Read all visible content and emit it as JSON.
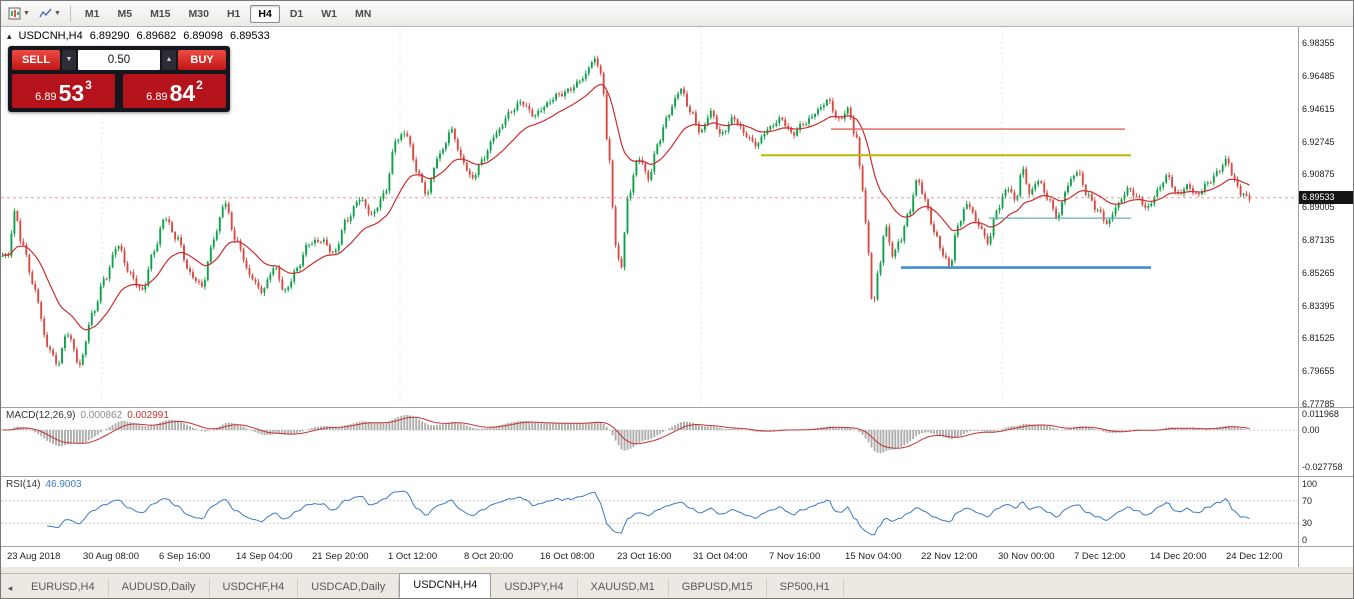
{
  "toolbar": {
    "timeframes": [
      "M1",
      "M5",
      "M15",
      "M30",
      "H1",
      "H4",
      "D1",
      "W1",
      "MN"
    ],
    "active_timeframe": "H4"
  },
  "chart_header": {
    "symbol": "USDCNH,H4",
    "open": "6.89290",
    "high": "6.89682",
    "low": "6.89098",
    "close": "6.89533",
    "collapse_icon": "▴"
  },
  "trade_panel": {
    "sell_label": "SELL",
    "buy_label": "BUY",
    "volume": "0.50",
    "sell_price": {
      "head": "6.89",
      "main": "53",
      "sup": "3"
    },
    "buy_price": {
      "head": "6.89",
      "main": "84",
      "sup": "2"
    }
  },
  "price_axis": {
    "ticks": [
      "6.98355",
      "6.96485",
      "6.94615",
      "6.92745",
      "6.90875",
      "6.89005",
      "6.87135",
      "6.85265",
      "6.83395",
      "6.81525",
      "6.79655",
      "6.77785"
    ],
    "current_price": "6.89533"
  },
  "time_axis": {
    "labels": [
      "23 Aug 2018",
      "30 Aug 08:00",
      "6 Sep 16:00",
      "14 Sep 04:00",
      "21 Sep 20:00",
      "1 Oct 12:00",
      "8 Oct 20:00",
      "16 Oct 08:00",
      "23 Oct 16:00",
      "31 Oct 04:00",
      "7 Nov 16:00",
      "15 Nov 04:00",
      "22 Nov 12:00",
      "30 Nov 00:00",
      "7 Dec 12:00",
      "14 Dec 20:00",
      "24 Dec 12:00"
    ]
  },
  "indicators": {
    "macd": {
      "name": "MACD(12,26,9)",
      "value_main": "0.000862",
      "value_signal": "0.002991",
      "ticks": [
        "0.011968",
        "0.00",
        "-0.027758"
      ]
    },
    "rsi": {
      "name": "RSI(14)",
      "value": "46.9003",
      "ticks": [
        "100",
        "70",
        "30",
        "0"
      ]
    }
  },
  "tabs": {
    "items": [
      "EURUSD,H4",
      "AUDUSD,Daily",
      "USDCHF,H4",
      "USDCAD,Daily",
      "USDCNH,H4",
      "USDJPY,H4",
      "XAUUSD,M1",
      "GBPUSD,M15",
      "SP500,H1"
    ],
    "active": "USDCNH,H4",
    "scroll_left_icon": "◂"
  },
  "chart_data": {
    "type": "candlestick",
    "title": "USDCNH,H4",
    "price_top": 6.98355,
    "price_bottom": 6.77785,
    "num_candles": 420,
    "ma_period": 21,
    "close_anchors": [
      [
        0.004,
        6.862
      ],
      [
        0.01,
        6.888
      ],
      [
        0.016,
        6.868
      ],
      [
        0.026,
        6.842
      ],
      [
        0.036,
        6.812
      ],
      [
        0.044,
        6.8
      ],
      [
        0.052,
        6.818
      ],
      [
        0.062,
        6.801
      ],
      [
        0.072,
        6.828
      ],
      [
        0.082,
        6.85
      ],
      [
        0.092,
        6.868
      ],
      [
        0.102,
        6.852
      ],
      [
        0.112,
        6.843
      ],
      [
        0.122,
        6.865
      ],
      [
        0.13,
        6.885
      ],
      [
        0.14,
        6.872
      ],
      [
        0.15,
        6.852
      ],
      [
        0.16,
        6.846
      ],
      [
        0.17,
        6.872
      ],
      [
        0.178,
        6.893
      ],
      [
        0.188,
        6.87
      ],
      [
        0.198,
        6.851
      ],
      [
        0.208,
        6.843
      ],
      [
        0.218,
        6.855
      ],
      [
        0.226,
        6.842
      ],
      [
        0.236,
        6.855
      ],
      [
        0.246,
        6.869
      ],
      [
        0.256,
        6.872
      ],
      [
        0.266,
        6.863
      ],
      [
        0.276,
        6.883
      ],
      [
        0.286,
        6.895
      ],
      [
        0.296,
        6.885
      ],
      [
        0.306,
        6.898
      ],
      [
        0.316,
        6.928
      ],
      [
        0.324,
        6.932
      ],
      [
        0.332,
        6.912
      ],
      [
        0.34,
        6.897
      ],
      [
        0.35,
        6.92
      ],
      [
        0.36,
        6.934
      ],
      [
        0.368,
        6.917
      ],
      [
        0.376,
        6.907
      ],
      [
        0.386,
        6.918
      ],
      [
        0.396,
        6.932
      ],
      [
        0.406,
        6.944
      ],
      [
        0.416,
        6.949
      ],
      [
        0.426,
        6.943
      ],
      [
        0.436,
        6.948
      ],
      [
        0.446,
        6.954
      ],
      [
        0.456,
        6.958
      ],
      [
        0.466,
        6.963
      ],
      [
        0.474,
        6.975
      ],
      [
        0.48,
        6.968
      ],
      [
        0.486,
        6.92
      ],
      [
        0.492,
        6.866
      ],
      [
        0.496,
        6.856
      ],
      [
        0.502,
        6.898
      ],
      [
        0.51,
        6.918
      ],
      [
        0.518,
        6.906
      ],
      [
        0.526,
        6.928
      ],
      [
        0.534,
        6.943
      ],
      [
        0.544,
        6.957
      ],
      [
        0.552,
        6.945
      ],
      [
        0.56,
        6.932
      ],
      [
        0.568,
        6.944
      ],
      [
        0.576,
        6.932
      ],
      [
        0.586,
        6.94
      ],
      [
        0.595,
        6.932
      ],
      [
        0.605,
        6.926
      ],
      [
        0.614,
        6.934
      ],
      [
        0.624,
        6.941
      ],
      [
        0.634,
        6.931
      ],
      [
        0.643,
        6.938
      ],
      [
        0.653,
        6.945
      ],
      [
        0.662,
        6.95
      ],
      [
        0.67,
        6.94
      ],
      [
        0.678,
        6.946
      ],
      [
        0.684,
        6.93
      ],
      [
        0.69,
        6.9
      ],
      [
        0.694,
        6.865
      ],
      [
        0.698,
        6.834
      ],
      [
        0.702,
        6.852
      ],
      [
        0.708,
        6.878
      ],
      [
        0.714,
        6.862
      ],
      [
        0.72,
        6.872
      ],
      [
        0.726,
        6.886
      ],
      [
        0.734,
        6.905
      ],
      [
        0.74,
        6.893
      ],
      [
        0.748,
        6.875
      ],
      [
        0.756,
        6.86
      ],
      [
        0.76,
        6.856
      ],
      [
        0.766,
        6.88
      ],
      [
        0.774,
        6.893
      ],
      [
        0.782,
        6.88
      ],
      [
        0.79,
        6.87
      ],
      [
        0.798,
        6.89
      ],
      [
        0.806,
        6.901
      ],
      [
        0.812,
        6.893
      ],
      [
        0.818,
        6.912
      ],
      [
        0.824,
        6.898
      ],
      [
        0.83,
        6.905
      ],
      [
        0.838,
        6.895
      ],
      [
        0.846,
        6.885
      ],
      [
        0.854,
        6.902
      ],
      [
        0.862,
        6.91
      ],
      [
        0.87,
        6.898
      ],
      [
        0.878,
        6.888
      ],
      [
        0.886,
        6.88
      ],
      [
        0.894,
        6.892
      ],
      [
        0.902,
        6.9
      ],
      [
        0.91,
        6.895
      ],
      [
        0.918,
        6.89
      ],
      [
        0.926,
        6.899
      ],
      [
        0.934,
        6.907
      ],
      [
        0.942,
        6.898
      ],
      [
        0.95,
        6.902
      ],
      [
        0.958,
        6.896
      ],
      [
        0.966,
        6.904
      ],
      [
        0.974,
        6.91
      ],
      [
        0.982,
        6.916
      ],
      [
        0.988,
        6.905
      ],
      [
        0.994,
        6.898
      ],
      [
        1.0,
        6.8953
      ]
    ],
    "hlines": [
      {
        "price": 6.9345,
        "x1": 0.64,
        "x2": 0.867,
        "color": "#e06262",
        "width": 1.4
      },
      {
        "price": 6.9196,
        "x1": 0.586,
        "x2": 0.871,
        "color": "#b9b900",
        "width": 2
      },
      {
        "price": 6.8838,
        "x1": 0.762,
        "x2": 0.871,
        "color": "#5fb0b0",
        "width": 1.2
      },
      {
        "price": 6.8556,
        "x1": 0.694,
        "x2": 0.887,
        "color": "#3e8ed0",
        "width": 2.6
      }
    ],
    "separators": [
      0.078,
      0.308,
      0.54,
      0.772
    ],
    "colors": {
      "bull": "#0fa04a",
      "bear": "#d84a44",
      "ma": "#cc2e2e",
      "bid_line": "#dd8f8f",
      "macd_hist": "#adadad",
      "macd_signal": "#c63333",
      "rsi": "#3b7bc8",
      "tag_bg": "#141414",
      "trade_red": "#c01713",
      "price_panel_red": "#b5131b"
    }
  }
}
